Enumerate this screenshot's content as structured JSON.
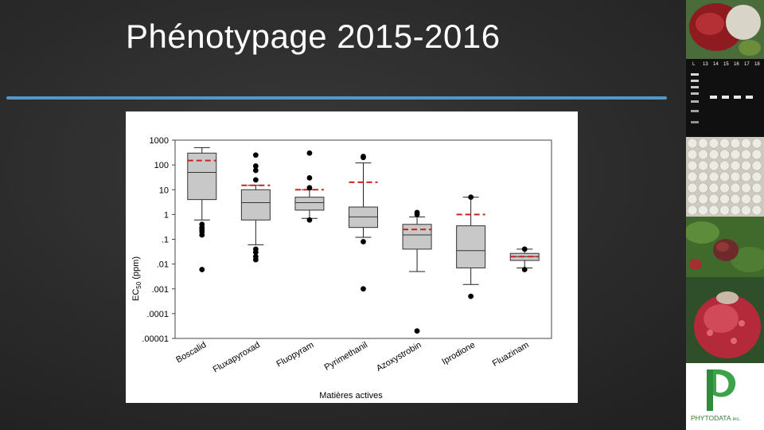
{
  "slide": {
    "title": "Phénotypage 2015-2016",
    "accent_color": "#5ba3d6"
  },
  "logo": {
    "text_main": "PHYTODATA",
    "text_suffix": "inc.",
    "color": "#2e7d32"
  },
  "photos": [
    {
      "name": "strawberry-fruit-photo",
      "icon": "strawberry-photo"
    },
    {
      "name": "electrophoresis-gel-photo",
      "icon": "gel-photo",
      "lane_labels": [
        "L",
        "13",
        "14",
        "15",
        "16",
        "17",
        "18"
      ]
    },
    {
      "name": "culture-plates-photo",
      "icon": "plates-photo"
    },
    {
      "name": "raspberry-plant-photo",
      "icon": "raspberry-plant-photo"
    },
    {
      "name": "raspberry-fruit-photo",
      "icon": "raspberry-photo"
    }
  ],
  "chart_data": {
    "type": "box",
    "xlabel": "Matières actives",
    "ylabel": "EC50 (ppm)",
    "y_scale": "log",
    "ylim": [
      1e-05,
      1000
    ],
    "y_ticks": [
      {
        "value": 1000,
        "label": "1000"
      },
      {
        "value": 100,
        "label": "100"
      },
      {
        "value": 10,
        "label": "10"
      },
      {
        "value": 1,
        "label": "1"
      },
      {
        "value": 0.1,
        "label": ".1"
      },
      {
        "value": 0.01,
        "label": ".01"
      },
      {
        "value": 0.001,
        "label": ".001"
      },
      {
        "value": 0.0001,
        "label": ".0001"
      },
      {
        "value": 1e-05,
        "label": ".00001"
      }
    ],
    "box_color": "#c8c8c8",
    "mean_color": "#cc2222",
    "categories": [
      "Boscalid",
      "Fluxapyroxad",
      "Fluopyram",
      "Pyrimethanil",
      "Azoxystrobin",
      "Iprodione",
      "Fluazinam"
    ],
    "boxes": [
      {
        "name": "Boscalid",
        "whisker_low": 0.6,
        "q1": 4,
        "median": 50,
        "q3": 300,
        "whisker_high": 500,
        "mean": 150,
        "outliers": [
          0.4,
          0.3,
          0.25,
          0.2,
          0.15,
          0.006
        ]
      },
      {
        "name": "Fluxapyroxad",
        "whisker_low": 0.06,
        "q1": 0.6,
        "median": 3,
        "q3": 10,
        "whisker_high": 15,
        "mean": 15,
        "outliers": [
          25,
          60,
          90,
          250,
          0.04,
          0.03,
          0.02,
          0.015
        ]
      },
      {
        "name": "Fluopyram",
        "whisker_low": 0.7,
        "q1": 1.5,
        "median": 3,
        "q3": 5,
        "whisker_high": 10,
        "mean": 10,
        "outliers": [
          12,
          30,
          300,
          0.6
        ]
      },
      {
        "name": "Pyrimethanil",
        "whisker_low": 0.12,
        "q1": 0.3,
        "median": 0.8,
        "q3": 2,
        "whisker_high": 120,
        "mean": 20,
        "outliers": [
          200,
          220,
          0.08,
          0.001
        ]
      },
      {
        "name": "Azoxystrobin",
        "whisker_low": 0.005,
        "q1": 0.04,
        "median": 0.15,
        "q3": 0.4,
        "whisker_high": 0.8,
        "mean": 0.25,
        "outliers": [
          1,
          1.2,
          2e-05
        ]
      },
      {
        "name": "Iprodione",
        "whisker_low": 0.0015,
        "q1": 0.007,
        "median": 0.035,
        "q3": 0.35,
        "whisker_high": 5,
        "mean": 1,
        "outliers": [
          5,
          0.0005
        ]
      },
      {
        "name": "Fluazinam",
        "whisker_low": 0.007,
        "q1": 0.014,
        "median": 0.02,
        "q3": 0.027,
        "whisker_high": 0.04,
        "mean": 0.02,
        "outliers": [
          0.04,
          0.006
        ]
      }
    ]
  }
}
